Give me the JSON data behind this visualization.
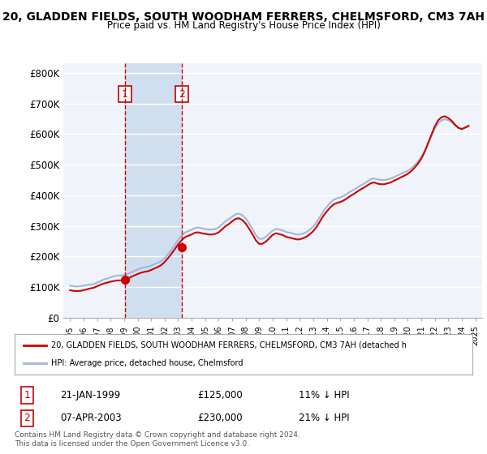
{
  "title": "20, GLADDEN FIELDS, SOUTH WOODHAM FERRERS, CHELMSFORD, CM3 7AH",
  "subtitle": "Price paid vs. HM Land Registry's House Price Index (HPI)",
  "ylabel": "",
  "background_color": "#ffffff",
  "plot_bg_color": "#f0f4fa",
  "grid_color": "#ffffff",
  "hpi_color": "#a0b8d8",
  "price_color": "#cc0000",
  "marker_color": "#cc0000",
  "vline_color": "#cc0000",
  "highlight_box_color": "#d0dff0",
  "yticks": [
    0,
    100000,
    200000,
    300000,
    400000,
    500000,
    600000,
    700000,
    800000
  ],
  "ytick_labels": [
    "£0",
    "£100K",
    "£200K",
    "£300K",
    "£400K",
    "£500K",
    "£600K",
    "£700K",
    "£800K"
  ],
  "xlim_start": 1994.5,
  "xlim_end": 2025.5,
  "ylim_min": 0,
  "ylim_max": 830000,
  "transaction1_x": 1999.06,
  "transaction1_y": 125000,
  "transaction1_label": "1",
  "transaction1_date": "21-JAN-1999",
  "transaction1_price": "£125,000",
  "transaction1_hpi": "11% ↓ HPI",
  "transaction2_x": 2003.27,
  "transaction2_y": 230000,
  "transaction2_label": "2",
  "transaction2_date": "07-APR-2003",
  "transaction2_price": "£230,000",
  "transaction2_hpi": "21% ↓ HPI",
  "legend_property": "20, GLADDEN FIELDS, SOUTH WOODHAM FERRERS, CHELMSFORD, CM3 7AH (detached h",
  "legend_hpi": "HPI: Average price, detached house, Chelmsford",
  "footnote": "Contains HM Land Registry data © Crown copyright and database right 2024.\nThis data is licensed under the Open Government Licence v3.0.",
  "hpi_data_x": [
    1995,
    1995.25,
    1995.5,
    1995.75,
    1996,
    1996.25,
    1996.5,
    1996.75,
    1997,
    1997.25,
    1997.5,
    1997.75,
    1998,
    1998.25,
    1998.5,
    1998.75,
    1999,
    1999.25,
    1999.5,
    1999.75,
    2000,
    2000.25,
    2000.5,
    2000.75,
    2001,
    2001.25,
    2001.5,
    2001.75,
    2002,
    2002.25,
    2002.5,
    2002.75,
    2003,
    2003.25,
    2003.5,
    2003.75,
    2004,
    2004.25,
    2004.5,
    2004.75,
    2005,
    2005.25,
    2005.5,
    2005.75,
    2006,
    2006.25,
    2006.5,
    2006.75,
    2007,
    2007.25,
    2007.5,
    2007.75,
    2008,
    2008.25,
    2008.5,
    2008.75,
    2009,
    2009.25,
    2009.5,
    2009.75,
    2010,
    2010.25,
    2010.5,
    2010.75,
    2011,
    2011.25,
    2011.5,
    2011.75,
    2012,
    2012.25,
    2012.5,
    2012.75,
    2013,
    2013.25,
    2013.5,
    2013.75,
    2014,
    2014.25,
    2014.5,
    2014.75,
    2015,
    2015.25,
    2015.5,
    2015.75,
    2016,
    2016.25,
    2016.5,
    2016.75,
    2017,
    2017.25,
    2017.5,
    2017.75,
    2018,
    2018.25,
    2018.5,
    2018.75,
    2019,
    2019.25,
    2019.5,
    2019.75,
    2020,
    2020.25,
    2020.5,
    2020.75,
    2021,
    2021.25,
    2021.5,
    2021.75,
    2022,
    2022.25,
    2022.5,
    2022.75,
    2023,
    2023.25,
    2023.5,
    2023.75,
    2024,
    2024.25,
    2024.5
  ],
  "hpi_data_y": [
    105000,
    103000,
    102000,
    103000,
    105000,
    107000,
    109000,
    110000,
    115000,
    120000,
    125000,
    128000,
    132000,
    136000,
    138000,
    138000,
    140000,
    143000,
    148000,
    153000,
    158000,
    162000,
    165000,
    167000,
    170000,
    175000,
    180000,
    185000,
    195000,
    208000,
    222000,
    238000,
    255000,
    268000,
    278000,
    283000,
    288000,
    293000,
    295000,
    292000,
    290000,
    288000,
    288000,
    290000,
    295000,
    305000,
    315000,
    322000,
    330000,
    338000,
    340000,
    335000,
    325000,
    308000,
    290000,
    270000,
    258000,
    258000,
    265000,
    275000,
    285000,
    290000,
    288000,
    285000,
    280000,
    278000,
    275000,
    272000,
    272000,
    275000,
    280000,
    288000,
    298000,
    312000,
    330000,
    348000,
    362000,
    375000,
    385000,
    390000,
    393000,
    398000,
    405000,
    412000,
    418000,
    425000,
    432000,
    438000,
    445000,
    452000,
    455000,
    452000,
    450000,
    450000,
    452000,
    455000,
    460000,
    465000,
    470000,
    475000,
    480000,
    488000,
    498000,
    510000,
    525000,
    545000,
    570000,
    595000,
    618000,
    635000,
    645000,
    648000,
    645000,
    638000,
    628000,
    620000,
    618000,
    622000,
    628000
  ],
  "price_data_x": [
    1995,
    1995.25,
    1995.5,
    1995.75,
    1996,
    1996.25,
    1996.5,
    1996.75,
    1997,
    1997.25,
    1997.5,
    1997.75,
    1998,
    1998.25,
    1998.5,
    1998.75,
    1999,
    1999.25,
    1999.5,
    1999.75,
    2000,
    2000.25,
    2000.5,
    2000.75,
    2001,
    2001.25,
    2001.5,
    2001.75,
    2002,
    2002.25,
    2002.5,
    2002.75,
    2003,
    2003.25,
    2003.5,
    2003.75,
    2004,
    2004.25,
    2004.5,
    2004.75,
    2005,
    2005.25,
    2005.5,
    2005.75,
    2006,
    2006.25,
    2006.5,
    2006.75,
    2007,
    2007.25,
    2007.5,
    2007.75,
    2008,
    2008.25,
    2008.5,
    2008.75,
    2009,
    2009.25,
    2009.5,
    2009.75,
    2010,
    2010.25,
    2010.5,
    2010.75,
    2011,
    2011.25,
    2011.5,
    2011.75,
    2012,
    2012.25,
    2012.5,
    2012.75,
    2013,
    2013.25,
    2013.5,
    2013.75,
    2014,
    2014.25,
    2014.5,
    2014.75,
    2015,
    2015.25,
    2015.5,
    2015.75,
    2016,
    2016.25,
    2016.5,
    2016.75,
    2017,
    2017.25,
    2017.5,
    2017.75,
    2018,
    2018.25,
    2018.5,
    2018.75,
    2019,
    2019.25,
    2019.5,
    2019.75,
    2020,
    2020.25,
    2020.5,
    2020.75,
    2021,
    2021.25,
    2021.5,
    2021.75,
    2022,
    2022.25,
    2022.5,
    2022.75,
    2023,
    2023.25,
    2023.5,
    2023.75,
    2024,
    2024.25,
    2024.5
  ],
  "price_data_y": [
    90000,
    88000,
    87000,
    88000,
    90000,
    93000,
    96000,
    98000,
    103000,
    108000,
    112000,
    115000,
    118000,
    120000,
    122000,
    122000,
    125000,
    128000,
    133000,
    138000,
    143000,
    147000,
    150000,
    152000,
    156000,
    161000,
    166000,
    172000,
    182000,
    195000,
    209000,
    224000,
    240000,
    253000,
    263000,
    268000,
    272000,
    278000,
    279000,
    276000,
    274000,
    272000,
    272000,
    274000,
    279000,
    289000,
    299000,
    306000,
    315000,
    323000,
    325000,
    319000,
    308000,
    291000,
    273000,
    253000,
    241000,
    242000,
    249000,
    260000,
    271000,
    276000,
    273000,
    270000,
    264000,
    262000,
    259000,
    256000,
    256000,
    260000,
    265000,
    273000,
    283000,
    297000,
    315000,
    333000,
    347000,
    360000,
    370000,
    375000,
    378000,
    383000,
    390000,
    398000,
    404000,
    412000,
    419000,
    425000,
    432000,
    439000,
    442000,
    438000,
    436000,
    436000,
    439000,
    442000,
    448000,
    453000,
    459000,
    464000,
    470000,
    479000,
    490000,
    503000,
    520000,
    542000,
    570000,
    598000,
    625000,
    645000,
    655000,
    658000,
    652000,
    643000,
    630000,
    620000,
    616000,
    621000,
    626000
  ]
}
